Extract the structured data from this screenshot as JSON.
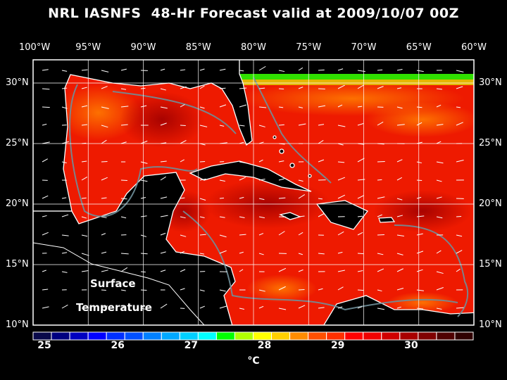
{
  "title": "NRL IASNFS  48-Hr Forecast valid at 2009/10/07 00Z",
  "lon_labels": [
    "100°W",
    "95°W",
    "90°W",
    "85°W",
    "80°W",
    "75°W",
    "70°W",
    "65°W",
    "60°W"
  ],
  "lat_labels": [
    "30°N",
    "25°N",
    "20°N",
    "15°N",
    "10°N"
  ],
  "map_labels": {
    "line1": "Surface",
    "line2": "Temperature"
  },
  "colorbar": {
    "unit": "°C",
    "tick_labels": [
      "25",
      "26",
      "27",
      "28",
      "29",
      "30"
    ],
    "range": [
      25,
      30.75
    ],
    "colors": [
      "#0a0a4a",
      "#000080",
      "#0000c0",
      "#0000ff",
      "#0030ff",
      "#0050ff",
      "#0080ff",
      "#00a8ff",
      "#00d0ff",
      "#00ffff",
      "#00ff00",
      "#b0ff00",
      "#ffff00",
      "#ffd000",
      "#ff8c00",
      "#ff5000",
      "#ff3000",
      "#ff0000",
      "#f00000",
      "#d00000",
      "#a80000",
      "#800000",
      "#500000",
      "#300000"
    ]
  },
  "map": {
    "lon_range": [
      -100,
      -60
    ],
    "lat_range": [
      10,
      31.9
    ],
    "ocean_color": "#ee1a00",
    "land_color": "#000000",
    "coast_color": "#ffffff",
    "bathymetry_color": "#6f8f9a"
  }
}
